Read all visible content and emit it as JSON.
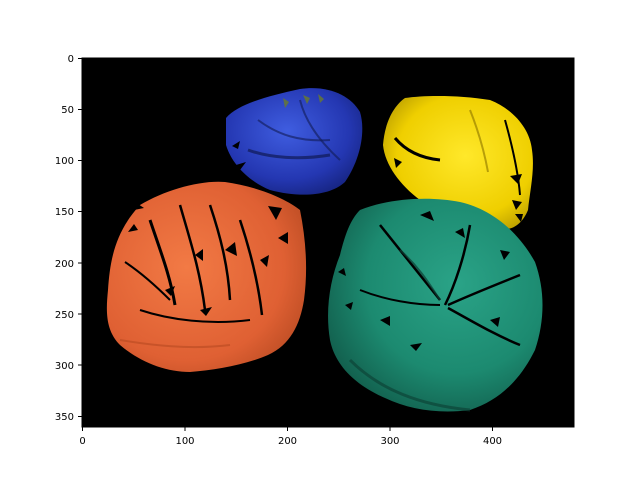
{
  "image": {
    "width": 480,
    "height": 360,
    "background": "#000000",
    "content": "segmented-cloth-masks",
    "objects": [
      {
        "name": "blue-cloth",
        "color": "#2a3fc0"
      },
      {
        "name": "yellow-cloth",
        "color": "#f2d400"
      },
      {
        "name": "orange-cloth",
        "color": "#ea6a3a"
      },
      {
        "name": "teal-cloth",
        "color": "#1e8a72"
      }
    ]
  },
  "axes": {
    "x_ticks": [
      "0",
      "100",
      "200",
      "300",
      "400"
    ],
    "y_ticks": [
      "0",
      "50",
      "100",
      "150",
      "200",
      "250",
      "300",
      "350"
    ]
  }
}
